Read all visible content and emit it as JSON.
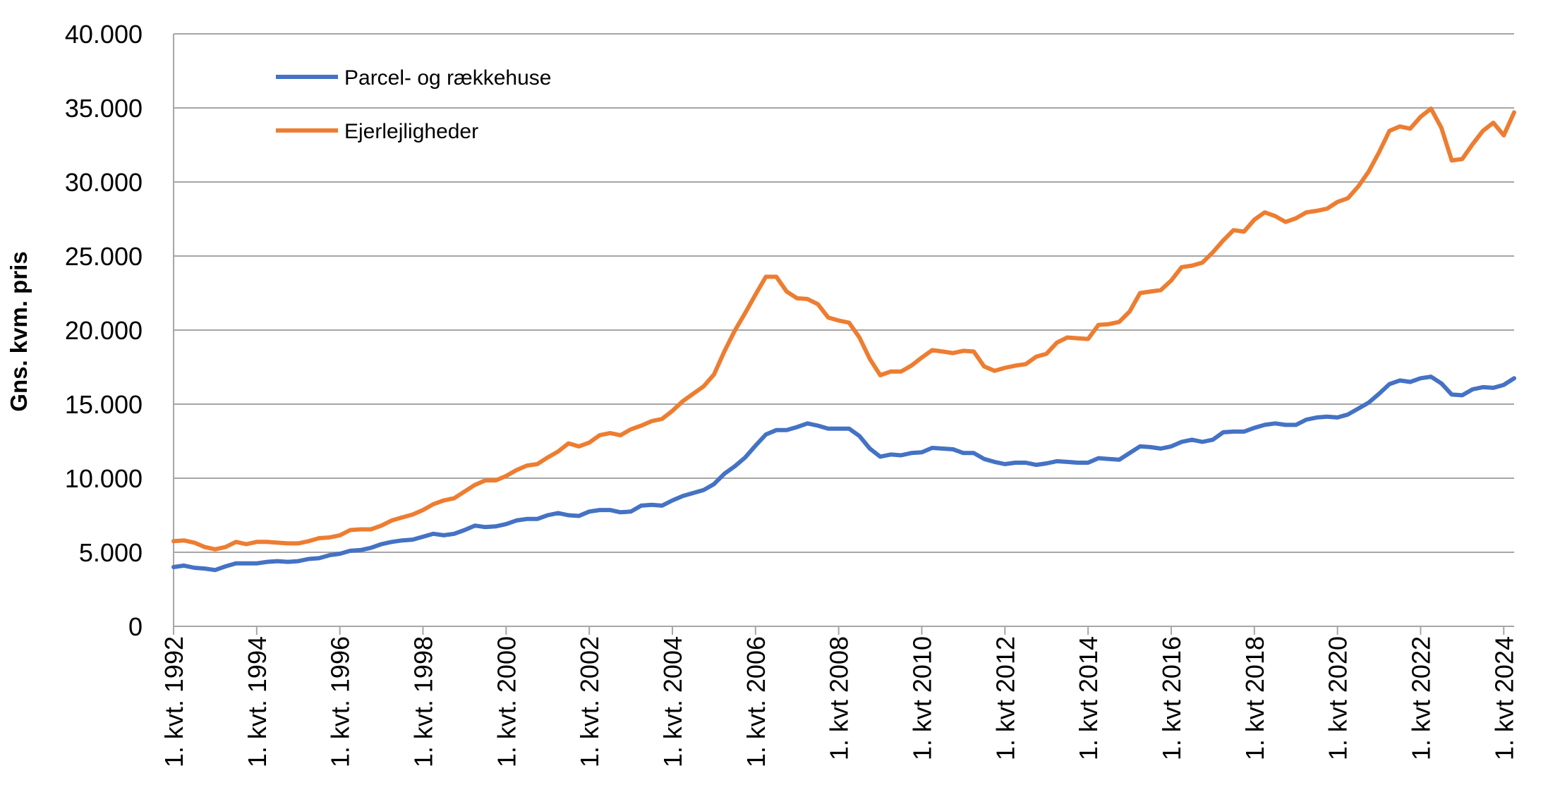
{
  "chart_data": {
    "type": "line",
    "title": "",
    "xlabel": "",
    "ylabel": "Gns. kvm. pris",
    "ylim": [
      0,
      40000
    ],
    "y_ticks": [
      {
        "value": 0,
        "label": "0"
      },
      {
        "value": 5000,
        "label": "5.000"
      },
      {
        "value": 10000,
        "label": "10.000"
      },
      {
        "value": 15000,
        "label": "15.000"
      },
      {
        "value": 20000,
        "label": "20.000"
      },
      {
        "value": 25000,
        "label": "25.000"
      },
      {
        "value": 30000,
        "label": "30.000"
      },
      {
        "value": 35000,
        "label": "35.000"
      },
      {
        "value": 40000,
        "label": "40.000"
      }
    ],
    "x_start": "1. kvt. 1992",
    "x_end": "3. kvt. 2024",
    "x_tick_labels": [
      "1. kvt. 1992",
      "1. kvt. 1994",
      "1. kvt. 1996",
      "1. kvt. 1998",
      "1. kvt. 2000",
      "1. kvt. 2002",
      "1. kvt. 2004",
      "1. kvt. 2006",
      "1. kvt 2008",
      "1. kvt 2010",
      "1. kvt 2012",
      "1. kvt 2014",
      "1. kvt 2016",
      "1. kvt 2018",
      "1. kvt 2020",
      "1. kvt 2022",
      "1. kvt 2024"
    ],
    "grid": true,
    "legend_position": "top-left",
    "series": [
      {
        "name": "Parcel- og rækkehuse",
        "color": "#4472C4",
        "values": [
          4000,
          4100,
          3950,
          3900,
          3800,
          4050,
          4250,
          4250,
          4250,
          4350,
          4400,
          4350,
          4400,
          4550,
          4600,
          4800,
          4900,
          5100,
          5150,
          5300,
          5550,
          5700,
          5800,
          5850,
          6050,
          6250,
          6150,
          6250,
          6500,
          6800,
          6700,
          6750,
          6900,
          7150,
          7250,
          7250,
          7500,
          7650,
          7500,
          7450,
          7750,
          7850,
          7850,
          7700,
          7750,
          8150,
          8200,
          8150,
          8500,
          8800,
          9000,
          9200,
          9600,
          10300,
          10800,
          11400,
          12200,
          12950,
          13250,
          13250,
          13450,
          13700,
          13550,
          13350,
          13350,
          13350,
          12850,
          12000,
          11450,
          11600,
          11550,
          11700,
          11750,
          12050,
          12000,
          11950,
          11700,
          11700,
          11300,
          11100,
          10950,
          11050,
          11050,
          10900,
          11000,
          11150,
          11100,
          11050,
          11050,
          11350,
          11300,
          11250,
          11700,
          12150,
          12100,
          12000,
          12150,
          12450,
          12600,
          12450,
          12600,
          13100,
          13150,
          13150,
          13400,
          13600,
          13700,
          13600,
          13600,
          13950,
          14100,
          14150,
          14100,
          14300,
          14700,
          15100,
          15700,
          16350,
          16600,
          16500,
          16750,
          16850,
          16400,
          15650,
          15600,
          16000,
          16150,
          16100,
          16300,
          16750
        ]
      },
      {
        "name": "Ejerlejligheder",
        "color": "#ED7D31",
        "values": [
          5750,
          5800,
          5650,
          5350,
          5200,
          5350,
          5700,
          5550,
          5700,
          5700,
          5650,
          5600,
          5600,
          5750,
          5950,
          6000,
          6150,
          6500,
          6550,
          6550,
          6800,
          7150,
          7350,
          7550,
          7850,
          8250,
          8500,
          8650,
          9100,
          9550,
          9850,
          9850,
          10150,
          10550,
          10850,
          10950,
          11400,
          11800,
          12350,
          12150,
          12400,
          12900,
          13050,
          12900,
          13300,
          13550,
          13850,
          14000,
          14550,
          15200,
          15700,
          16200,
          17000,
          18550,
          19950,
          21150,
          22400,
          23600,
          23600,
          22600,
          22150,
          22100,
          21750,
          20850,
          20650,
          20500,
          19500,
          18050,
          16950,
          17200,
          17200,
          17600,
          18150,
          18650,
          18550,
          18450,
          18600,
          18550,
          17550,
          17250,
          17450,
          17600,
          17700,
          18200,
          18400,
          19150,
          19500,
          19450,
          19400,
          20350,
          20400,
          20550,
          21250,
          22500,
          22600,
          22700,
          23350,
          24250,
          24350,
          24550,
          25250,
          26050,
          26750,
          26650,
          27450,
          27950,
          27700,
          27300,
          27550,
          27950,
          28050,
          28200,
          28650,
          28900,
          29700,
          30700,
          32000,
          33450,
          33750,
          33600,
          34400,
          34950,
          33650,
          31450,
          31550,
          32550,
          33450,
          34000,
          33150,
          34700
        ]
      }
    ]
  }
}
